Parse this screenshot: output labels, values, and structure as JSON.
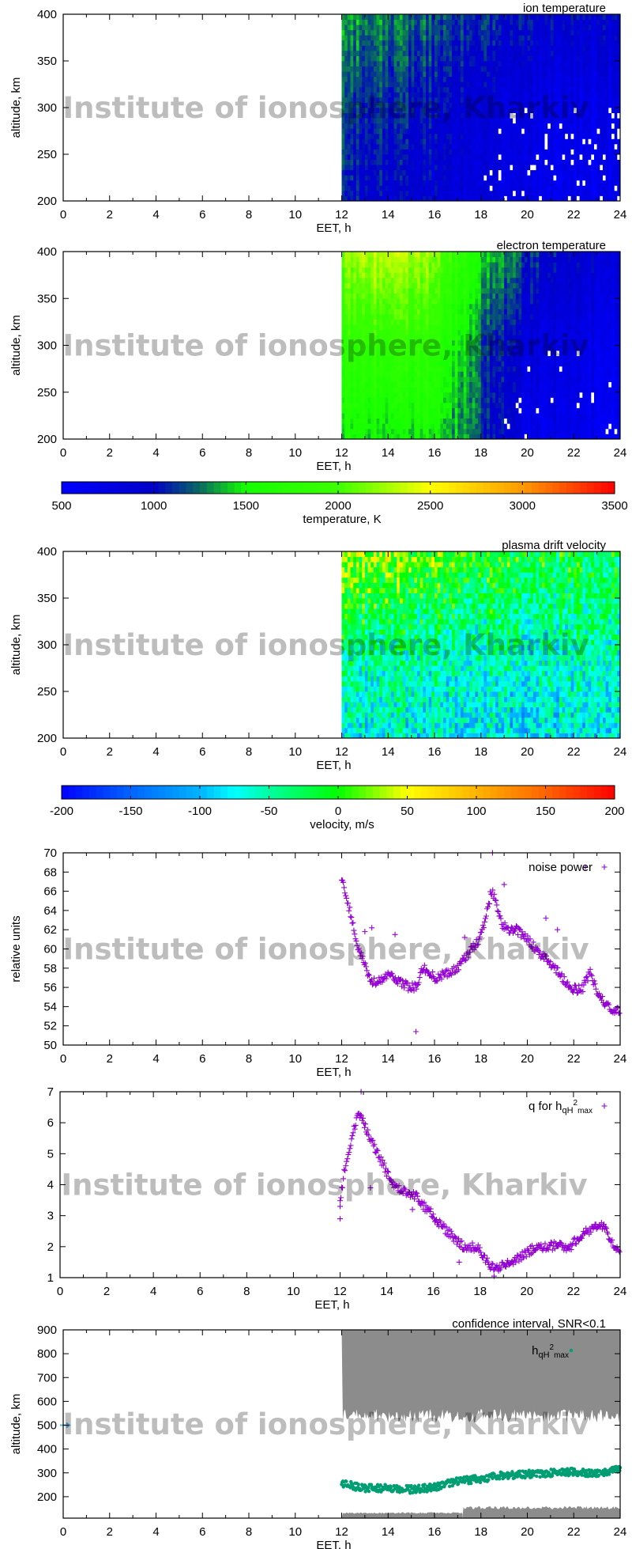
{
  "watermark": "Institute of ionosphere, Kharkiv",
  "chart_data": [
    {
      "type": "heatmap",
      "title": "ion temperature",
      "xlabel": "EET, h",
      "ylabel": "altitude, km",
      "xlim": [
        0,
        24
      ],
      "ylim": [
        200,
        400
      ],
      "xticks": [
        "0",
        "2",
        "4",
        "6",
        "8",
        "10",
        "12",
        "14",
        "16",
        "18",
        "20",
        "22",
        "24"
      ],
      "yticks": [
        "200",
        "250",
        "300",
        "350",
        "400"
      ],
      "colorbar": 0,
      "grid_times": [
        12,
        14,
        16,
        18,
        20,
        22,
        24
      ],
      "grid_altitudes": [
        200,
        300,
        400
      ],
      "z": [
        [
          1000,
          950,
          900,
          800,
          700,
          650,
          650
        ],
        [
          1100,
          1100,
          1000,
          850,
          750,
          700,
          700
        ],
        [
          1300,
          1300,
          1200,
          1100,
          1000,
          950,
          900
        ]
      ]
    },
    {
      "type": "heatmap",
      "title": "electron temperature",
      "xlabel": "EET, h",
      "ylabel": "altitude, km",
      "xlim": [
        0,
        24
      ],
      "ylim": [
        200,
        400
      ],
      "xticks": [
        "0",
        "2",
        "4",
        "6",
        "8",
        "10",
        "12",
        "14",
        "16",
        "18",
        "20",
        "22",
        "24"
      ],
      "yticks": [
        "200",
        "250",
        "300",
        "350",
        "400"
      ],
      "colorbar": 0,
      "grid_times": [
        12,
        14,
        16,
        18,
        20,
        22,
        24
      ],
      "grid_altitudes": [
        200,
        300,
        400
      ],
      "z": [
        [
          1500,
          1500,
          1500,
          1150,
          700,
          650,
          600
        ],
        [
          1800,
          1900,
          1800,
          1200,
          800,
          700,
          650
        ],
        [
          2200,
          2400,
          2200,
          1500,
          1100,
          900,
          850
        ]
      ]
    },
    {
      "type": "heatmap",
      "title": "plasma drift velocity",
      "xlabel": "EET, h",
      "ylabel": "altitude, km",
      "xlim": [
        0,
        24
      ],
      "ylim": [
        200,
        400
      ],
      "xticks": [
        "0",
        "2",
        "4",
        "6",
        "8",
        "10",
        "12",
        "14",
        "16",
        "18",
        "20",
        "22",
        "24"
      ],
      "yticks": [
        "200",
        "250",
        "300",
        "350",
        "400"
      ],
      "colorbar": 1,
      "grid_times": [
        12,
        14,
        16,
        18,
        20,
        22,
        24
      ],
      "grid_altitudes": [
        200,
        300,
        400
      ],
      "z": [
        [
          -80,
          -70,
          -80,
          -80,
          -90,
          -80,
          -80
        ],
        [
          -40,
          -40,
          -50,
          -50,
          -60,
          -50,
          -50
        ],
        [
          20,
          30,
          10,
          0,
          -20,
          -20,
          -20
        ]
      ]
    },
    {
      "type": "scatter",
      "xlabel": "EET, h",
      "ylabel": "relative units",
      "xlim": [
        0,
        24
      ],
      "ylim": [
        50,
        70
      ],
      "xticks": [
        "0",
        "2",
        "4",
        "6",
        "8",
        "10",
        "12",
        "14",
        "16",
        "18",
        "20",
        "22",
        "24"
      ],
      "yticks": [
        "50",
        "52",
        "54",
        "56",
        "58",
        "60",
        "62",
        "64",
        "66",
        "68",
        "70"
      ],
      "legend": "top-right",
      "series": [
        {
          "name": "noise power",
          "color": "#9400d3",
          "marker": "plus",
          "x": [
            12.0,
            12.2,
            12.4,
            12.6,
            12.8,
            13.0,
            13.2,
            13.5,
            13.8,
            14.0,
            14.3,
            14.6,
            14.9,
            15.2,
            15.5,
            15.8,
            16.0,
            16.3,
            16.6,
            17.0,
            17.3,
            17.6,
            17.9,
            18.2,
            18.4,
            18.5,
            18.7,
            18.9,
            19.2,
            19.5,
            19.8,
            20.2,
            20.5,
            20.8,
            21.2,
            21.5,
            21.8,
            22.1,
            22.4,
            22.7,
            23.0,
            23.3,
            23.6,
            24.0
          ],
          "y": [
            67.5,
            65.5,
            63.5,
            61.0,
            59.5,
            58.5,
            56.8,
            56.5,
            57.0,
            57.5,
            57.0,
            56.5,
            56.0,
            56.0,
            58.0,
            57.5,
            57.0,
            57.2,
            57.5,
            58.0,
            59.0,
            60.0,
            61.0,
            63.0,
            65.5,
            66.0,
            64.5,
            62.5,
            62.0,
            62.0,
            61.5,
            60.5,
            59.5,
            59.0,
            58.0,
            57.0,
            56.0,
            55.8,
            56.0,
            57.5,
            55.5,
            54.5,
            53.8,
            53.5
          ],
          "outliers_x": [
            18.5,
            19.0,
            22.5,
            15.2,
            13.3,
            14.3,
            13.0,
            17.3,
            20.8,
            21.3
          ],
          "outliers_y": [
            70.0,
            66.7,
            68.5,
            51.4,
            62.2,
            61.5,
            61.8,
            61.2,
            63.2,
            62.0
          ]
        }
      ]
    },
    {
      "type": "scatter",
      "xlabel": "EET, h",
      "ylabel": "",
      "xlim": [
        0,
        24
      ],
      "ylim": [
        1,
        7
      ],
      "xticks": [
        "0",
        "2",
        "4",
        "6",
        "8",
        "10",
        "12",
        "14",
        "16",
        "18",
        "20",
        "22",
        "24"
      ],
      "yticks": [
        "1",
        "2",
        "3",
        "4",
        "5",
        "6",
        "7"
      ],
      "legend": "top-right",
      "series": [
        {
          "name": "q for h",
          "name_sub": "qH",
          "name_sup": "2",
          "name_sub2": "max",
          "color": "#9400d3",
          "marker": "plus",
          "x": [
            12.0,
            12.2,
            12.5,
            12.8,
            13.0,
            13.3,
            13.6,
            14.0,
            14.3,
            14.6,
            15.0,
            15.3,
            15.6,
            16.0,
            16.3,
            16.6,
            17.0,
            17.3,
            17.6,
            18.0,
            18.3,
            18.6,
            19.0,
            19.4,
            19.8,
            20.2,
            20.6,
            21.0,
            21.4,
            21.8,
            22.2,
            22.6,
            23.0,
            23.4,
            23.7,
            24.0
          ],
          "y": [
            3.5,
            4.5,
            5.5,
            6.3,
            6.0,
            5.5,
            5.0,
            4.4,
            4.0,
            3.8,
            3.7,
            3.6,
            3.3,
            3.0,
            2.7,
            2.5,
            2.2,
            2.0,
            2.0,
            1.9,
            1.5,
            1.3,
            1.4,
            1.5,
            1.7,
            1.9,
            2.0,
            2.0,
            2.1,
            1.9,
            2.3,
            2.5,
            2.7,
            2.6,
            2.0,
            1.9
          ],
          "outliers_x": [
            12.0,
            12.0,
            12.9,
            13.3,
            15.1,
            17.1,
            18.6
          ],
          "outliers_y": [
            2.9,
            3.3,
            7.0,
            3.9,
            3.2,
            1.5,
            1.05
          ]
        }
      ]
    },
    {
      "type": "scatter",
      "title": "confidence interval, SNR<0.1",
      "xlabel": "EET, h",
      "ylabel": "altitude, km",
      "xlim": [
        0,
        24
      ],
      "ylim": [
        110,
        900
      ],
      "xticks": [
        "0",
        "2",
        "4",
        "6",
        "8",
        "10",
        "12",
        "14",
        "16",
        "18",
        "20",
        "22",
        "24"
      ],
      "yticks": [
        "200",
        "300",
        "400",
        "500",
        "600",
        "700",
        "800",
        "900"
      ],
      "legend": "top-right",
      "series": [
        {
          "name": "h",
          "name_sub": "qH",
          "name_sup": "2",
          "name_sub2": "max",
          "color": "#009e73",
          "marker": "dot",
          "x": [
            12,
            13,
            14,
            15,
            16,
            17,
            18,
            19,
            20,
            21,
            22,
            23,
            24
          ],
          "y": [
            255,
            235,
            235,
            230,
            240,
            265,
            275,
            290,
            295,
            300,
            305,
            295,
            315
          ]
        }
      ],
      "confidence_interval": {
        "color": "#8c8c8c",
        "upper": {
          "x": [
            12,
            24
          ],
          "y_min": 520,
          "y_max": 900
        },
        "lower": [
          {
            "x": [
              12,
              17.2
            ],
            "y_min": 110,
            "y_max": 135
          },
          {
            "x": [
              17.2,
              24
            ],
            "y_min": 110,
            "y_max": 160
          }
        ]
      },
      "marker_at_axis": {
        "x": 0,
        "y": 500,
        "color": "#56b4e9"
      }
    }
  ],
  "colorbars": [
    {
      "label": "temperature, K",
      "range": [
        500,
        3500
      ],
      "ticks": [
        "500",
        "1000",
        "1500",
        "2000",
        "2500",
        "3000",
        "3500"
      ],
      "stops": [
        [
          500,
          "#0000ff"
        ],
        [
          1000,
          "#0000c8"
        ],
        [
          1250,
          "#0a6a60"
        ],
        [
          1500,
          "#14ff00"
        ],
        [
          2000,
          "#3cff00"
        ],
        [
          2500,
          "#ffff00"
        ],
        [
          3000,
          "#ff9a00"
        ],
        [
          3500,
          "#ff0000"
        ]
      ]
    },
    {
      "label": "velocity, m/s",
      "range": [
        -200,
        200
      ],
      "ticks": [
        "-200",
        "-150",
        "-100",
        "-50",
        "0",
        "50",
        "100",
        "150",
        "200"
      ],
      "stops": [
        [
          -200,
          "#0000ff"
        ],
        [
          -150,
          "#0064ff"
        ],
        [
          -100,
          "#00b4ff"
        ],
        [
          -75,
          "#00ffff"
        ],
        [
          -50,
          "#00ffa0"
        ],
        [
          0,
          "#00ff00"
        ],
        [
          50,
          "#ffff00"
        ],
        [
          100,
          "#ffb400"
        ],
        [
          150,
          "#ff6400"
        ],
        [
          200,
          "#ff0000"
        ]
      ]
    }
  ]
}
